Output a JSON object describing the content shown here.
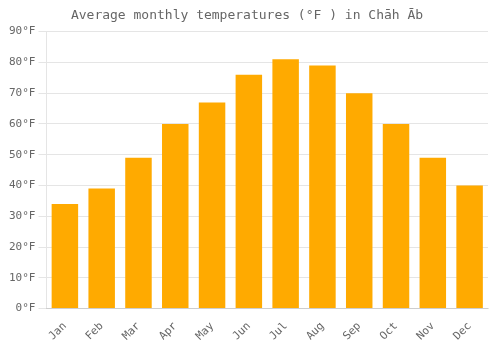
{
  "chart_data": {
    "type": "bar",
    "title": "Average monthly temperatures (°F ) in Chāh Āb",
    "categories": [
      "Jan",
      "Feb",
      "Mar",
      "Apr",
      "May",
      "Jun",
      "Jul",
      "Aug",
      "Sep",
      "Oct",
      "Nov",
      "Dec"
    ],
    "values": [
      34,
      39,
      49,
      60,
      67,
      76,
      81,
      79,
      70,
      60,
      49,
      40
    ],
    "color": "#FFAA00",
    "ylim": [
      0,
      90
    ],
    "yticks": [
      {
        "value": 0,
        "label": "0°F"
      },
      {
        "value": 10,
        "label": "10°F"
      },
      {
        "value": 20,
        "label": "20°F"
      },
      {
        "value": 30,
        "label": "30°F"
      },
      {
        "value": 40,
        "label": "40°F"
      },
      {
        "value": 50,
        "label": "50°F"
      },
      {
        "value": 60,
        "label": "60°F"
      },
      {
        "value": 70,
        "label": "70°F"
      },
      {
        "value": 80,
        "label": "80°F"
      },
      {
        "value": 90,
        "label": "90°F"
      }
    ],
    "grid": true
  }
}
